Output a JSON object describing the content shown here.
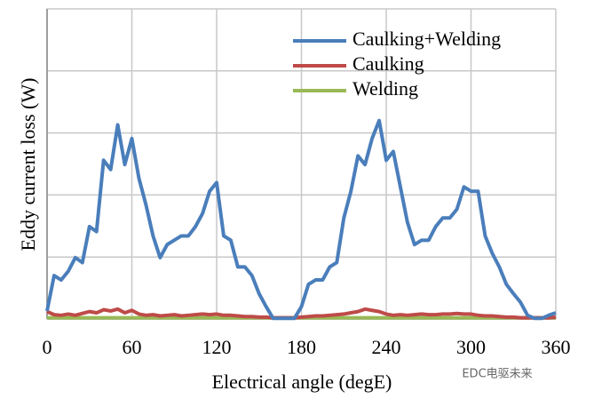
{
  "chart_data": {
    "type": "line",
    "xlabel": "Electrical angle (degE)",
    "ylabel": "Eddy current loss (W)",
    "watermark": "EDC电驱未来",
    "x": [
      0,
      5,
      10,
      15,
      20,
      25,
      30,
      35,
      40,
      45,
      50,
      55,
      60,
      65,
      70,
      75,
      80,
      85,
      90,
      95,
      100,
      105,
      110,
      115,
      120,
      125,
      130,
      135,
      140,
      145,
      150,
      155,
      160,
      165,
      170,
      175,
      180,
      185,
      190,
      195,
      200,
      205,
      210,
      215,
      220,
      225,
      230,
      235,
      240,
      245,
      250,
      255,
      260,
      265,
      270,
      275,
      280,
      285,
      290,
      295,
      300,
      305,
      310,
      315,
      320,
      325,
      330,
      335,
      340,
      345,
      350,
      355,
      360
    ],
    "series": [
      {
        "name": "Caulking+Welding",
        "color": "#4a7ebb",
        "values": [
          0.13,
          0.7,
          0.63,
          0.77,
          0.99,
          0.91,
          1.49,
          1.41,
          2.56,
          2.41,
          3.13,
          2.49,
          2.91,
          2.27,
          1.84,
          1.34,
          0.99,
          1.2,
          1.27,
          1.34,
          1.34,
          1.49,
          1.7,
          2.06,
          2.2,
          1.34,
          1.27,
          0.84,
          0.84,
          0.7,
          0.41,
          0.2,
          0.01,
          0.01,
          0.01,
          0.01,
          0.2,
          0.56,
          0.63,
          0.63,
          0.84,
          0.91,
          1.63,
          2.06,
          2.63,
          2.49,
          2.91,
          3.2,
          2.56,
          2.7,
          2.13,
          1.56,
          1.2,
          1.27,
          1.27,
          1.49,
          1.63,
          1.63,
          1.77,
          2.13,
          2.06,
          2.06,
          1.34,
          1.06,
          0.84,
          0.56,
          0.41,
          0.27,
          0.06,
          0.01,
          0.01,
          0.06,
          0.1
        ]
      },
      {
        "name": "Caulking",
        "color": "#be4b48",
        "values": [
          0.12,
          0.07,
          0.06,
          0.08,
          0.06,
          0.09,
          0.12,
          0.1,
          0.15,
          0.13,
          0.16,
          0.1,
          0.14,
          0.08,
          0.06,
          0.07,
          0.05,
          0.06,
          0.07,
          0.05,
          0.06,
          0.07,
          0.08,
          0.07,
          0.08,
          0.06,
          0.06,
          0.05,
          0.04,
          0.04,
          0.03,
          0.03,
          0.02,
          0.02,
          0.02,
          0.02,
          0.03,
          0.04,
          0.05,
          0.05,
          0.06,
          0.07,
          0.08,
          0.1,
          0.12,
          0.16,
          0.14,
          0.12,
          0.08,
          0.06,
          0.07,
          0.06,
          0.07,
          0.08,
          0.07,
          0.07,
          0.08,
          0.08,
          0.09,
          0.08,
          0.08,
          0.06,
          0.05,
          0.05,
          0.04,
          0.03,
          0.03,
          0.02,
          0.02,
          0.02,
          0.02,
          0.02,
          0.03
        ]
      },
      {
        "name": "Welding",
        "color": "#98b954",
        "values": [
          0.02,
          0.02,
          0.02,
          0.02,
          0.02,
          0.02,
          0.02,
          0.02,
          0.02,
          0.02,
          0.02,
          0.02,
          0.02,
          0.02,
          0.02,
          0.02,
          0.02,
          0.02,
          0.02,
          0.02,
          0.02,
          0.02,
          0.02,
          0.02,
          0.02,
          0.02,
          0.02,
          0.02,
          0.02,
          0.02,
          0.02,
          0.02,
          0.02,
          0.02,
          0.02,
          0.02,
          0.02,
          0.02,
          0.02,
          0.02,
          0.02,
          0.02,
          0.02,
          0.02,
          0.02,
          0.02,
          0.02,
          0.02,
          0.02,
          0.02,
          0.02,
          0.02,
          0.02,
          0.02,
          0.02,
          0.02,
          0.02,
          0.02,
          0.02,
          0.02,
          0.02,
          0.02,
          0.02,
          0.02,
          0.02,
          0.02,
          0.02,
          0.02,
          0.02,
          0.02,
          0.02,
          0.02,
          0.02
        ]
      }
    ],
    "xlim": [
      0,
      360
    ],
    "xticks": [
      0,
      60,
      120,
      180,
      240,
      300,
      360
    ],
    "ylim": [
      0,
      5
    ],
    "grid": true,
    "legend": "upper right"
  }
}
